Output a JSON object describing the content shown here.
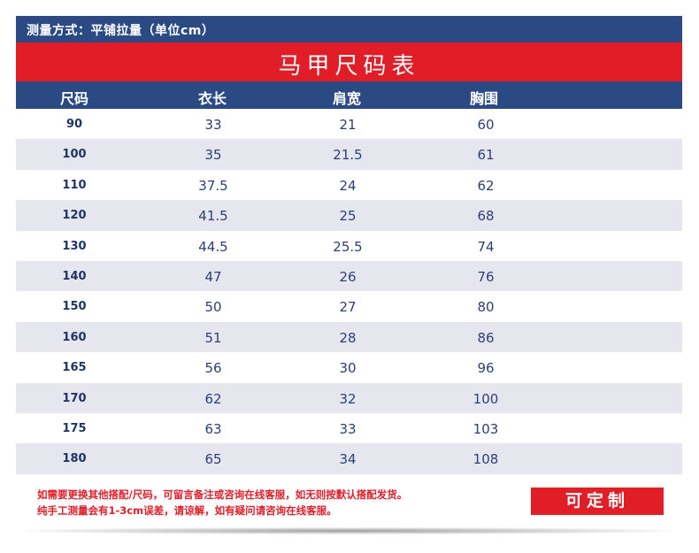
{
  "header": {
    "measure_note": "测量方式：平铺拉量（单位cm）",
    "title": "马甲尺码表"
  },
  "columns": [
    "尺码",
    "衣长",
    "肩宽",
    "胸围"
  ],
  "rows": [
    [
      "90",
      "33",
      "21",
      "60"
    ],
    [
      "100",
      "35",
      "21.5",
      "61"
    ],
    [
      "110",
      "37.5",
      "24",
      "62"
    ],
    [
      "120",
      "41.5",
      "25",
      "68"
    ],
    [
      "130",
      "44.5",
      "25.5",
      "74"
    ],
    [
      "140",
      "47",
      "26",
      "76"
    ],
    [
      "150",
      "50",
      "27",
      "80"
    ],
    [
      "160",
      "51",
      "28",
      "86"
    ],
    [
      "165",
      "56",
      "30",
      "96"
    ],
    [
      "170",
      "62",
      "32",
      "100"
    ],
    [
      "175",
      "63",
      "33",
      "103"
    ],
    [
      "180",
      "65",
      "34",
      "108"
    ]
  ],
  "footer": {
    "note_line1": "如需要更换其他搭配/尺码，可留言备注或咨询在线客服，如无则按默认搭配发货。",
    "note_line2": "纯手工测量会有1-3cm误差，请谅解，如有疑问请咨询在线客服。",
    "custom_label": "可定制"
  },
  "colors": {
    "navy": "#2b4a84",
    "red": "#e11d28",
    "alt_row": "#e6e6ee"
  }
}
